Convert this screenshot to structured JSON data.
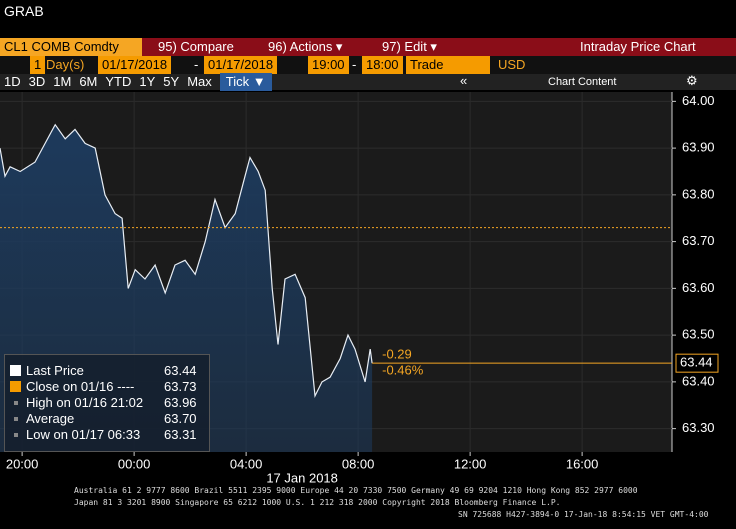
{
  "window_title": "GRAB",
  "toolbar": {
    "security": "CL1 COMB Comdty",
    "compare": "95) Compare",
    "actions": "96) Actions ▾",
    "edit": "97) Edit ▾",
    "chart_name": "Intraday Price Chart",
    "period_count": "1",
    "period_unit": "Day(s)",
    "start_date": "01/17/2018",
    "dash": "-",
    "end_date": "01/17/2018",
    "start_time": "19:00",
    "end_time": "18:00",
    "field": "Trade",
    "currency": "USD",
    "ranges": [
      "1D",
      "3D",
      "1M",
      "6M",
      "YTD",
      "1Y",
      "5Y",
      "Max",
      "Tick ▼"
    ],
    "collapse": "«",
    "chart_content": "Chart Content",
    "settings": "⚙"
  },
  "chart_data": {
    "type": "area",
    "color": "#e8eef5",
    "fill": "#1d3a5c",
    "x": [
      -4.79,
      -4.61,
      -4.43,
      -4.07,
      -3.54,
      -3.18,
      -2.82,
      -2.46,
      -2.11,
      -1.75,
      -1.39,
      -1.04,
      -0.68,
      -0.43,
      -0.21,
      0.04,
      0.39,
      0.75,
      1.11,
      1.46,
      1.82,
      2.18,
      2.54,
      2.89,
      3.25,
      3.61,
      3.96,
      4.14,
      4.43,
      4.68,
      4.93,
      5.14,
      5.39,
      5.75,
      6.11,
      6.46,
      6.71,
      7.0,
      7.36,
      7.64,
      7.89,
      8.25,
      8.43,
      8.5
    ],
    "values": [
      63.9,
      63.84,
      63.86,
      63.85,
      63.87,
      63.91,
      63.95,
      63.92,
      63.94,
      63.91,
      63.9,
      63.8,
      63.76,
      63.75,
      63.6,
      63.64,
      63.62,
      63.65,
      63.59,
      63.65,
      63.66,
      63.63,
      63.7,
      63.79,
      63.73,
      63.76,
      63.84,
      63.88,
      63.85,
      63.81,
      63.6,
      63.48,
      63.62,
      63.63,
      63.58,
      63.37,
      63.4,
      63.41,
      63.45,
      63.5,
      63.47,
      63.4,
      63.47,
      63.44
    ],
    "xlim": [
      -4.79,
      19.21
    ],
    "ylim": [
      63.25,
      64.02
    ],
    "xticks": [
      {
        "value": -4,
        "label": "20:00"
      },
      {
        "value": 0,
        "label": "00:00"
      },
      {
        "value": 4,
        "label": "04:00"
      },
      {
        "value": 8,
        "label": "08:00"
      },
      {
        "value": 12,
        "label": "12:00"
      },
      {
        "value": 16,
        "label": "16:00"
      }
    ],
    "yticks": [
      {
        "value": 63.3,
        "label": "63.30"
      },
      {
        "value": 63.4,
        "label": "63.40"
      },
      {
        "value": 63.5,
        "label": "63.50"
      },
      {
        "value": 63.6,
        "label": "63.60"
      },
      {
        "value": 63.7,
        "label": "63.70"
      },
      {
        "value": 63.8,
        "label": "63.80"
      },
      {
        "value": 63.9,
        "label": "63.90"
      },
      {
        "value": 64.0,
        "label": "64.00"
      }
    ],
    "x_date_label": "17 Jan 2018",
    "close_line": {
      "value": 63.73,
      "color": "#f5a623"
    },
    "last_line": {
      "value": 63.44,
      "label": "63.44",
      "color": "#f5a623"
    },
    "change": "-0.29",
    "change_pct": "-0.46%",
    "legend": [
      {
        "label": "Last Price",
        "value": "63.44"
      },
      {
        "label": "Close on 01/16 ----",
        "value": "63.73"
      },
      {
        "label": "High on 01/16 21:02",
        "value": "63.96"
      },
      {
        "label": "Average",
        "value": "63.70"
      },
      {
        "label": "Low on 01/17 06:33",
        "value": "63.31"
      }
    ]
  },
  "footer": [
    "Australia 61 2 9777 8600 Brazil 5511 2395 9000 Europe 44 20 7330 7500 Germany 49 69 9204 1210 Hong Kong 852 2977 6000",
    "Japan 81 3 3201 8900       Singapore 65 6212 1000       U.S. 1 212 318 2000             Copyright 2018 Bloomberg Finance L.P.",
    "SN 725688 H427-3894-0 17-Jan-18  8:54:15 VET  GMT-4:00"
  ]
}
